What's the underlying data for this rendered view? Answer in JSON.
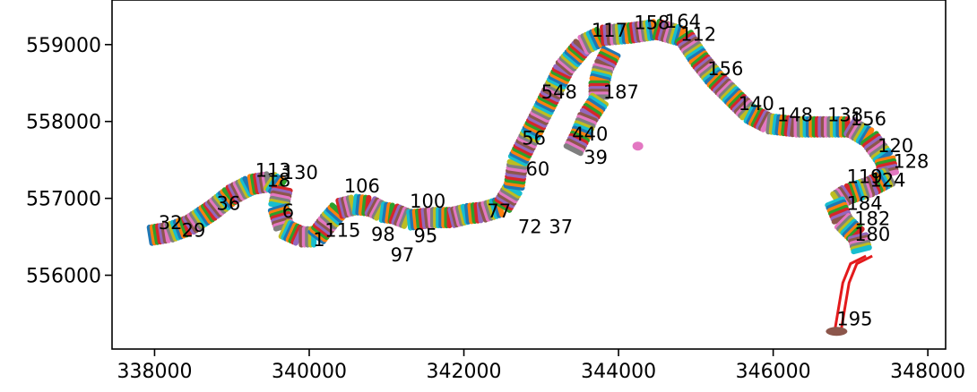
{
  "chart_data": {
    "type": "scatter",
    "title": "",
    "xlabel": "",
    "ylabel": "",
    "xlim": [
      337450,
      348230
    ],
    "ylim": [
      555040,
      559580
    ],
    "xticks": [
      338000,
      340000,
      342000,
      344000,
      346000,
      348000
    ],
    "yticks": [
      556000,
      557000,
      558000,
      559000
    ],
    "xtick_labels": [
      "338000",
      "340000",
      "342000",
      "344000",
      "346000",
      "348000"
    ],
    "ytick_labels": [
      "556000",
      "557000",
      "558000",
      "559000"
    ],
    "grid": false,
    "legend": "none",
    "palette": [
      "#1f77b4",
      "#ff7f0e",
      "#2ca02c",
      "#d62728",
      "#9467bd",
      "#8c564b",
      "#e377c2",
      "#7f7f7f",
      "#bcbd22",
      "#17becf"
    ],
    "track": [
      [
        337950,
        556520
      ],
      [
        338200,
        556560
      ],
      [
        338450,
        556650
      ],
      [
        338750,
        556850
      ],
      [
        339000,
        557050
      ],
      [
        339250,
        557180
      ],
      [
        339500,
        557220
      ],
      [
        339650,
        557120
      ],
      [
        339600,
        556870
      ],
      [
        339680,
        556600
      ],
      [
        339900,
        556500
      ],
      [
        340100,
        556500
      ],
      [
        340250,
        556700
      ],
      [
        340400,
        556870
      ],
      [
        340600,
        556920
      ],
      [
        340800,
        556900
      ],
      [
        340950,
        556820
      ],
      [
        341100,
        556800
      ],
      [
        341300,
        556720
      ],
      [
        341600,
        556750
      ],
      [
        341850,
        556750
      ],
      [
        342050,
        556800
      ],
      [
        342250,
        556820
      ],
      [
        342500,
        556900
      ],
      [
        342650,
        557150
      ],
      [
        342700,
        557500
      ],
      [
        342800,
        557700
      ],
      [
        342950,
        558000
      ],
      [
        343100,
        558300
      ],
      [
        343300,
        558700
      ],
      [
        343550,
        559000
      ],
      [
        343800,
        559120
      ],
      [
        344150,
        559150
      ],
      [
        344500,
        559200
      ],
      [
        344850,
        559100
      ],
      [
        345050,
        558800
      ],
      [
        345250,
        558550
      ],
      [
        345500,
        558300
      ],
      [
        345700,
        558100
      ],
      [
        345950,
        557970
      ],
      [
        346300,
        557930
      ],
      [
        346650,
        557930
      ],
      [
        347000,
        557930
      ],
      [
        347250,
        557780
      ],
      [
        347450,
        557500
      ],
      [
        347500,
        557280
      ],
      [
        347250,
        557150
      ],
      [
        346950,
        557050
      ],
      [
        346800,
        556950
      ],
      [
        346900,
        556700
      ],
      [
        347100,
        556500
      ],
      [
        347150,
        556300
      ]
    ],
    "branch": [
      [
        343900,
        558900
      ],
      [
        343800,
        558700
      ],
      [
        343750,
        558500
      ],
      [
        343750,
        558280
      ],
      [
        343600,
        558050
      ],
      [
        343500,
        557800
      ],
      [
        343400,
        557600
      ]
    ],
    "tail_line": [
      [
        347200,
        556250
      ],
      [
        347000,
        556150
      ],
      [
        346900,
        555900
      ],
      [
        346850,
        555600
      ],
      [
        346800,
        555300
      ]
    ],
    "labels": [
      {
        "text": "1",
        "x": 340050,
        "y": 556380
      },
      {
        "text": "6",
        "x": 339650,
        "y": 556750
      },
      {
        "text": "18",
        "x": 339450,
        "y": 557150
      },
      {
        "text": "32",
        "x": 338050,
        "y": 556600
      },
      {
        "text": "29",
        "x": 338350,
        "y": 556500
      },
      {
        "text": "36",
        "x": 338800,
        "y": 556850
      },
      {
        "text": "113",
        "x": 339300,
        "y": 557280
      },
      {
        "text": "130",
        "x": 339650,
        "y": 557250
      },
      {
        "text": "106",
        "x": 340450,
        "y": 557080
      },
      {
        "text": "115",
        "x": 340200,
        "y": 556500
      },
      {
        "text": "98",
        "x": 340800,
        "y": 556450
      },
      {
        "text": "97",
        "x": 341050,
        "y": 556180
      },
      {
        "text": "95",
        "x": 341350,
        "y": 556430
      },
      {
        "text": "100",
        "x": 341300,
        "y": 556880
      },
      {
        "text": "77",
        "x": 342300,
        "y": 556750
      },
      {
        "text": "72",
        "x": 342700,
        "y": 556550
      },
      {
        "text": "37",
        "x": 343100,
        "y": 556550
      },
      {
        "text": "56",
        "x": 342750,
        "y": 557700
      },
      {
        "text": "60",
        "x": 342800,
        "y": 557300
      },
      {
        "text": "548",
        "x": 343000,
        "y": 558300
      },
      {
        "text": "440",
        "x": 343400,
        "y": 557750
      },
      {
        "text": "39",
        "x": 343550,
        "y": 557450
      },
      {
        "text": "187",
        "x": 343800,
        "y": 558300
      },
      {
        "text": "117",
        "x": 343650,
        "y": 559100
      },
      {
        "text": "158",
        "x": 344200,
        "y": 559200
      },
      {
        "text": "164",
        "x": 344600,
        "y": 559220
      },
      {
        "text": "112",
        "x": 344800,
        "y": 559050
      },
      {
        "text": "156",
        "x": 345150,
        "y": 558600
      },
      {
        "text": "140",
        "x": 345550,
        "y": 558150
      },
      {
        "text": "148",
        "x": 346050,
        "y": 558000
      },
      {
        "text": "138",
        "x": 346700,
        "y": 558000
      },
      {
        "text": "156",
        "x": 347000,
        "y": 557950
      },
      {
        "text": "120",
        "x": 347350,
        "y": 557600
      },
      {
        "text": "128",
        "x": 347550,
        "y": 557400
      },
      {
        "text": "124",
        "x": 347250,
        "y": 557150
      },
      {
        "text": "119",
        "x": 346950,
        "y": 557200
      },
      {
        "text": "184",
        "x": 346950,
        "y": 556850
      },
      {
        "text": "182",
        "x": 347050,
        "y": 556650
      },
      {
        "text": "180",
        "x": 347050,
        "y": 556450
      },
      {
        "text": "195",
        "x": 346820,
        "y": 555350
      }
    ]
  }
}
